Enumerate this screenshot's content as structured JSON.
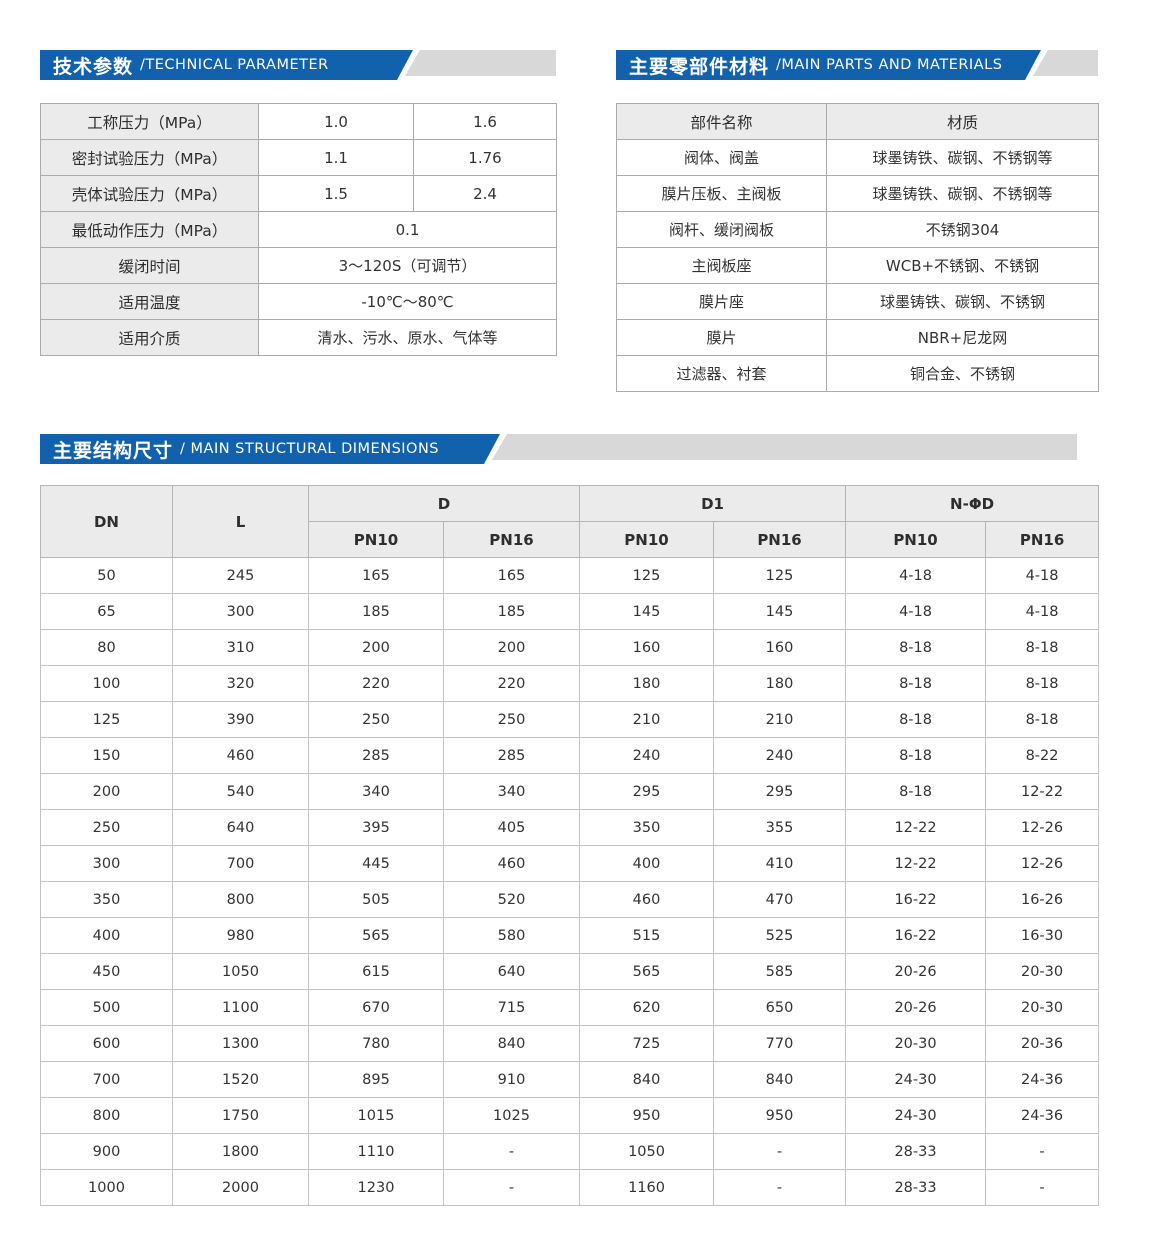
{
  "colors": {
    "accent_blue": "#1261ad",
    "banner_gray": "#d8d8d8",
    "header_cell_bg": "#ebebeb",
    "grid_border": "#ababab",
    "text": "#333333"
  },
  "technical_parameter": {
    "title_zh": "技术参数",
    "title_en": "/TECHNICAL PARAMETER",
    "rows": [
      {
        "label": "工称压力（MPa）",
        "values": [
          "1.0",
          "1.6"
        ]
      },
      {
        "label": "密封试验压力（MPa）",
        "values": [
          "1.1",
          "1.76"
        ]
      },
      {
        "label": "壳体试验压力（MPa）",
        "values": [
          "1.5",
          "2.4"
        ]
      },
      {
        "label": "最低动作压力（MPa）",
        "values": [
          "0.1"
        ]
      },
      {
        "label": "缓闭时间",
        "values": [
          "3～120S（可调节）"
        ]
      },
      {
        "label": "适用温度",
        "values": [
          "-10℃～80℃"
        ]
      },
      {
        "label": "适用介质",
        "values": [
          "清水、污水、原水、气体等"
        ]
      }
    ]
  },
  "main_parts_materials": {
    "title_zh": "主要零部件材料",
    "title_en": "/MAIN PARTS AND MATERIALS",
    "headers": [
      "部件名称",
      "材质"
    ],
    "rows": [
      [
        "阀体、阀盖",
        "球墨铸铁、碳钢、不锈钢等"
      ],
      [
        "膜片压板、主阀板",
        "球墨铸铁、碳钢、不锈钢等"
      ],
      [
        "阀杆、缓闭阀板",
        "不锈钢304"
      ],
      [
        "主阀板座",
        "WCB+不锈钢、不锈钢"
      ],
      [
        "膜片座",
        "球墨铸铁、碳钢、不锈钢"
      ],
      [
        "膜片",
        "NBR+尼龙网"
      ],
      [
        "过滤器、衬套",
        "铜合金、不锈钢"
      ]
    ]
  },
  "structural_dimensions": {
    "title_zh": "主要结构尺寸",
    "title_en": "/ MAIN STRUCTURAL DIMENSIONS",
    "header": {
      "dn": "DN",
      "l": "L",
      "groups": [
        "D",
        "D1",
        "N-ΦD"
      ],
      "sub": [
        "PN10",
        "PN16"
      ]
    },
    "rows": [
      [
        "50",
        "245",
        "165",
        "165",
        "125",
        "125",
        "4-18",
        "4-18"
      ],
      [
        "65",
        "300",
        "185",
        "185",
        "145",
        "145",
        "4-18",
        "4-18"
      ],
      [
        "80",
        "310",
        "200",
        "200",
        "160",
        "160",
        "8-18",
        "8-18"
      ],
      [
        "100",
        "320",
        "220",
        "220",
        "180",
        "180",
        "8-18",
        "8-18"
      ],
      [
        "125",
        "390",
        "250",
        "250",
        "210",
        "210",
        "8-18",
        "8-18"
      ],
      [
        "150",
        "460",
        "285",
        "285",
        "240",
        "240",
        "8-18",
        "8-22"
      ],
      [
        "200",
        "540",
        "340",
        "340",
        "295",
        "295",
        "8-18",
        "12-22"
      ],
      [
        "250",
        "640",
        "395",
        "405",
        "350",
        "355",
        "12-22",
        "12-26"
      ],
      [
        "300",
        "700",
        "445",
        "460",
        "400",
        "410",
        "12-22",
        "12-26"
      ],
      [
        "350",
        "800",
        "505",
        "520",
        "460",
        "470",
        "16-22",
        "16-26"
      ],
      [
        "400",
        "980",
        "565",
        "580",
        "515",
        "525",
        "16-22",
        "16-30"
      ],
      [
        "450",
        "1050",
        "615",
        "640",
        "565",
        "585",
        "20-26",
        "20-30"
      ],
      [
        "500",
        "1100",
        "670",
        "715",
        "620",
        "650",
        "20-26",
        "20-30"
      ],
      [
        "600",
        "1300",
        "780",
        "840",
        "725",
        "770",
        "20-30",
        "20-36"
      ],
      [
        "700",
        "1520",
        "895",
        "910",
        "840",
        "840",
        "24-30",
        "24-36"
      ],
      [
        "800",
        "1750",
        "1015",
        "1025",
        "950",
        "950",
        "24-30",
        "24-36"
      ],
      [
        "900",
        "1800",
        "1110",
        "-",
        "1050",
        "-",
        "28-33",
        "-"
      ],
      [
        "1000",
        "2000",
        "1230",
        "-",
        "1160",
        "-",
        "28-33",
        "-"
      ]
    ]
  }
}
